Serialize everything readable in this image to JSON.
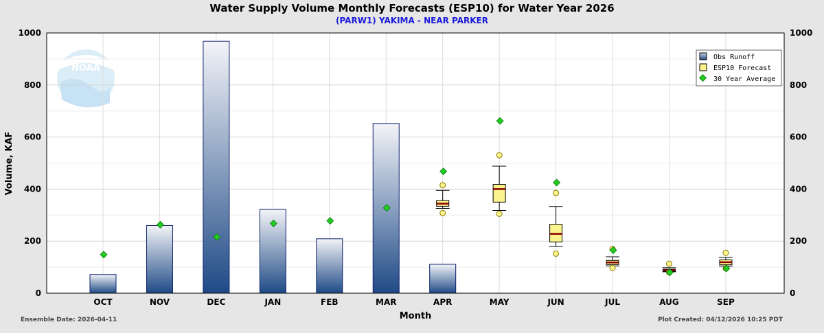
{
  "chart_data": {
    "type": "bar",
    "title": "Water Supply Volume Monthly Forecasts (ESP10) for Water Year 2026",
    "subtitle": "(PARW1) YAKIMA - NEAR PARKER",
    "xlabel": "Month",
    "ylabel": "Volume, KAF",
    "ylim": [
      0,
      1000
    ],
    "yticks": [
      "0",
      "200",
      "400",
      "600",
      "800",
      "1000"
    ],
    "categories": [
      "OCT",
      "NOV",
      "DEC",
      "JAN",
      "FEB",
      "MAR",
      "APR",
      "MAY",
      "JUN",
      "JUL",
      "AUG",
      "SEP"
    ],
    "grid": true,
    "legend_position": "top-right",
    "series": [
      {
        "name": "Obs Runoff",
        "type": "bar",
        "color": "#1f4e8c",
        "values": [
          72,
          260,
          968,
          322,
          209,
          652,
          111,
          null,
          null,
          null,
          null,
          null
        ]
      },
      {
        "name": "ESP10 Forecast",
        "type": "boxplot",
        "color": "#fbf38c",
        "median_color": "#8b0000",
        "boxes": [
          {
            "month": "APR",
            "whisker_low": 326,
            "q1": 334,
            "median": 344,
            "q3": 356,
            "whisker_high": 395,
            "outlier_low": 308,
            "outlier_high": 415
          },
          {
            "month": "MAY",
            "whisker_low": 318,
            "q1": 350,
            "median": 400,
            "q3": 418,
            "whisker_high": 488,
            "outlier_low": 305,
            "outlier_high": 530
          },
          {
            "month": "JUN",
            "whisker_low": 180,
            "q1": 197,
            "median": 228,
            "q3": 265,
            "whisker_high": 333,
            "outlier_low": 152,
            "outlier_high": 385
          },
          {
            "month": "JUL",
            "whisker_low": 105,
            "q1": 110,
            "median": 118,
            "q3": 126,
            "whisker_high": 140,
            "outlier_low": 97,
            "outlier_high": 170
          },
          {
            "month": "AUG",
            "whisker_low": 82,
            "q1": 84,
            "median": 88,
            "q3": 92,
            "whisker_high": 98,
            "outlier_low": 80,
            "outlier_high": 113
          },
          {
            "month": "SEP",
            "whisker_low": 104,
            "q1": 109,
            "median": 119,
            "q3": 128,
            "whisker_high": 138,
            "outlier_low": 95,
            "outlier_high": 155
          }
        ]
      },
      {
        "name": "30 Year Average",
        "type": "scatter",
        "color": "#22cc22",
        "values": [
          148,
          263,
          216,
          268,
          278,
          328,
          468,
          662,
          425,
          165,
          80,
          95
        ]
      }
    ]
  },
  "footer": {
    "left": "Ensemble Date: 2026-04-11",
    "right": "Plot Created: 04/12/2026 10:25 PDT"
  },
  "logo_text": "NOAA"
}
